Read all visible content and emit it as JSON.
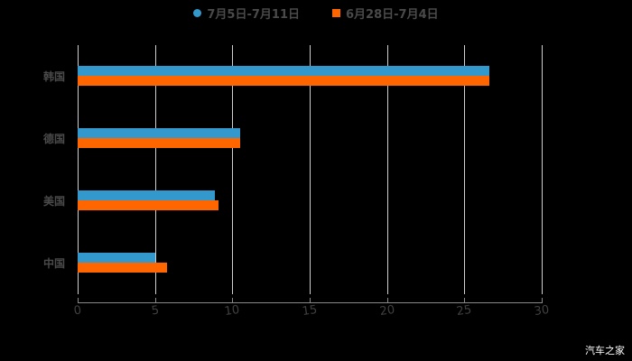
{
  "chart_data": {
    "type": "bar",
    "orientation": "horizontal",
    "title": "",
    "xlabel": "",
    "ylabel": "",
    "categories": [
      "韩国",
      "德国",
      "美国",
      "中国"
    ],
    "series": [
      {
        "name": "7月5日-7月11日",
        "color": "#3399cc",
        "values": [
          26.6,
          10.5,
          8.9,
          5.0
        ]
      },
      {
        "name": "6月28日-7月4日",
        "color": "#ff6600",
        "values": [
          26.6,
          10.5,
          9.1,
          5.8
        ]
      }
    ],
    "xlim": [
      0,
      30
    ],
    "xticks": [
      "0",
      "5",
      "10",
      "15",
      "20",
      "25",
      "30"
    ],
    "grid": true,
    "legend_position": "top"
  },
  "legend": {
    "items": [
      {
        "label": "7月5日-7月11日",
        "color": "#3399cc",
        "marker": "circle"
      },
      {
        "label": "6月28日-7月4日",
        "color": "#ff6600",
        "marker": "square"
      }
    ]
  },
  "watermark": "汽车之家"
}
